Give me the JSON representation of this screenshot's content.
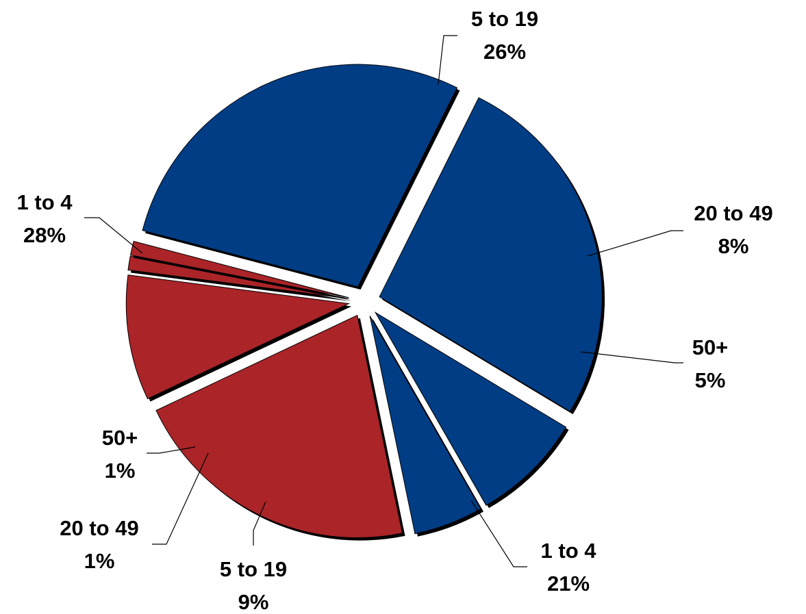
{
  "chart_data": {
    "type": "pie",
    "title": "",
    "exploded": true,
    "start_angle_deg": 26.5,
    "direction": "clockwise",
    "slices": [
      {
        "label": "5 to 19",
        "pct_text": "26%",
        "value": 26,
        "color": "#003D85"
      },
      {
        "label": "20 to 49",
        "pct_text": "8%",
        "value": 8,
        "color": "#003D85"
      },
      {
        "label": "50+",
        "pct_text": "5%",
        "value": 5,
        "color": "#003D85"
      },
      {
        "label": "1 to 4",
        "pct_text": "21%",
        "value": 21,
        "color": "#AA2428"
      },
      {
        "label": "5 to 19",
        "pct_text": "9%",
        "value": 9,
        "color": "#AA2428"
      },
      {
        "label": "20 to 49",
        "pct_text": "1%",
        "value": 1,
        "color": "#AA2428"
      },
      {
        "label": "50+",
        "pct_text": "1%",
        "value": 1,
        "color": "#AA2428"
      },
      {
        "label": "1 to 4",
        "pct_text": "28%",
        "value": 28,
        "color": "#003D85"
      }
    ]
  }
}
